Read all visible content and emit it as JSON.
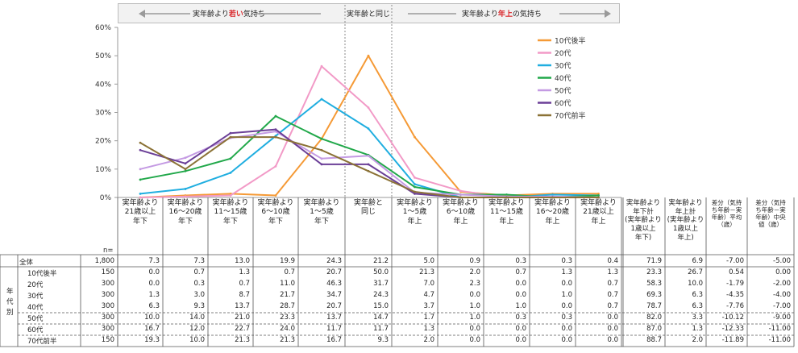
{
  "banner": {
    "left_prefix": "実年齢より",
    "left_highlight": "若い",
    "left_suffix": "気持ち",
    "center": "実年齢と同じ",
    "right_prefix": "実年齢より",
    "right_highlight": "年上",
    "right_suffix": "の気持ち"
  },
  "colors": {
    "10代後半": "#f59a36",
    "20代": "#f29ac7",
    "30代": "#20aee0",
    "40代": "#21a84a",
    "50代": "#c49ae3",
    "60代": "#6b3f97",
    "70代前半": "#8b7236"
  },
  "chart_data": {
    "type": "line",
    "categories": [
      "実年齢より21歳以上年下",
      "実年齢より16～20歳年下",
      "実年齢より11～15歳年下",
      "実年齢より6～10歳年下",
      "実年齢より1～5歳年下",
      "実年齢と同じ",
      "実年齢より1～5歳年上",
      "実年齢より6～10歳年上",
      "実年齢より11～15歳年上",
      "実年齢より16～20歳年上",
      "実年齢より21歳以上年上"
    ],
    "ylim": [
      0,
      60
    ],
    "yticks": [
      "0%",
      "10%",
      "20%",
      "30%",
      "40%",
      "50%",
      "60%"
    ],
    "legend_position": "top-right",
    "series": [
      {
        "name": "10代後半",
        "values": [
          0.0,
          0.7,
          1.3,
          0.7,
          20.7,
          50.0,
          21.3,
          2.0,
          0.7,
          1.3,
          1.3
        ]
      },
      {
        "name": "20代",
        "values": [
          0.0,
          0.3,
          0.7,
          11.0,
          46.3,
          31.7,
          7.0,
          2.3,
          0.0,
          0.0,
          0.7
        ]
      },
      {
        "name": "30代",
        "values": [
          1.3,
          3.0,
          8.7,
          21.7,
          34.7,
          24.3,
          4.7,
          0.0,
          0.0,
          1.0,
          0.7
        ]
      },
      {
        "name": "40代",
        "values": [
          6.3,
          9.3,
          13.7,
          28.7,
          20.7,
          15.0,
          3.7,
          1.0,
          1.0,
          0.0,
          0.7
        ]
      },
      {
        "name": "50代",
        "values": [
          10.0,
          14.0,
          21.0,
          23.3,
          13.7,
          14.7,
          1.7,
          1.0,
          0.3,
          0.3,
          0.0
        ]
      },
      {
        "name": "60代",
        "values": [
          16.7,
          12.0,
          22.7,
          24.0,
          11.7,
          11.7,
          1.3,
          0.0,
          0.0,
          0.0,
          0.0
        ]
      },
      {
        "name": "70代前半",
        "values": [
          19.3,
          10.0,
          21.3,
          21.3,
          16.7,
          9.3,
          2.0,
          0.0,
          0.0,
          0.0,
          0.0
        ]
      }
    ]
  },
  "table": {
    "n_label": "n=",
    "headers": [
      "実年齢より\n21歳以上\n年下",
      "実年齢より\n16～20歳\n年下",
      "実年齢より\n11～15歳\n年下",
      "実年齢より\n6～10歳\n年下",
      "実年齢より\n1～5歳\n年下",
      "実年齢と\n同じ",
      "実年齢より\n1～5歳\n年上",
      "実年齢より\n6～10歳\n年上",
      "実年齢より\n11～15歳\n年上",
      "実年齢より\n16～20歳\n年上",
      "実年齢より\n21歳以上\n年上"
    ],
    "summary_headers": [
      "実年齢より\n年下計\n(実年齢より\n1歳以上\n年下)",
      "実年齢より\n年上計\n(実年齢より\n1歳以上\n年上)"
    ],
    "diff_headers": [
      "差分（気持\nち年齢－実\n年齢）平均\n（歳）",
      "差分（気持\nち年齢－実\n年齢）中央\n値（歳）"
    ],
    "group_label": [
      "年",
      "代",
      "別"
    ],
    "rows": [
      {
        "label": "全体",
        "n": "1,800",
        "values": [
          "7.3",
          "7.3",
          "13.0",
          "19.9",
          "24.3",
          "21.2",
          "5.0",
          "0.9",
          "0.3",
          "0.3",
          "0.4"
        ],
        "sum": [
          "71.9",
          "6.9"
        ],
        "diff": [
          "-7.00",
          "-5.00"
        ]
      },
      {
        "label": "10代後半",
        "n": "150",
        "values": [
          "0.0",
          "0.7",
          "1.3",
          "0.7",
          "20.7",
          "50.0",
          "21.3",
          "2.0",
          "0.7",
          "1.3",
          "1.3"
        ],
        "sum": [
          "23.3",
          "26.7"
        ],
        "diff": [
          "0.54",
          "0.00"
        ]
      },
      {
        "label": "20代",
        "n": "300",
        "values": [
          "0.0",
          "0.3",
          "0.7",
          "11.0",
          "46.3",
          "31.7",
          "7.0",
          "2.3",
          "0.0",
          "0.0",
          "0.7"
        ],
        "sum": [
          "58.3",
          "10.0"
        ],
        "diff": [
          "-1.79",
          "-2.00"
        ]
      },
      {
        "label": "30代",
        "n": "300",
        "values": [
          "1.3",
          "3.0",
          "8.7",
          "21.7",
          "34.7",
          "24.3",
          "4.7",
          "0.0",
          "0.0",
          "1.0",
          "0.7"
        ],
        "sum": [
          "69.3",
          "6.3"
        ],
        "diff": [
          "-4.35",
          "-4.00"
        ]
      },
      {
        "label": "40代",
        "n": "300",
        "values": [
          "6.3",
          "9.3",
          "13.7",
          "28.7",
          "20.7",
          "15.0",
          "3.7",
          "1.0",
          "1.0",
          "0.0",
          "0.7"
        ],
        "sum": [
          "78.7",
          "6.3"
        ],
        "diff": [
          "-7.76",
          "-7.00"
        ]
      },
      {
        "label": "50代",
        "n": "300",
        "values": [
          "10.0",
          "14.0",
          "21.0",
          "23.3",
          "13.7",
          "14.7",
          "1.7",
          "1.0",
          "0.3",
          "0.3",
          "0.0"
        ],
        "sum": [
          "82.0",
          "3.3"
        ],
        "diff": [
          "-10.12",
          "-9.00"
        ]
      },
      {
        "label": "60代",
        "n": "300",
        "values": [
          "16.7",
          "12.0",
          "22.7",
          "24.0",
          "11.7",
          "11.7",
          "1.3",
          "0.0",
          "0.0",
          "0.0",
          "0.0"
        ],
        "sum": [
          "87.0",
          "1.3"
        ],
        "diff": [
          "-12.33",
          "-11.00"
        ]
      },
      {
        "label": "70代前半",
        "n": "150",
        "values": [
          "19.3",
          "10.0",
          "21.3",
          "21.3",
          "16.7",
          "9.3",
          "2.0",
          "0.0",
          "0.0",
          "0.0",
          "0.0"
        ],
        "sum": [
          "88.7",
          "2.0"
        ],
        "diff": [
          "-11.89",
          "-11.00"
        ]
      }
    ]
  }
}
